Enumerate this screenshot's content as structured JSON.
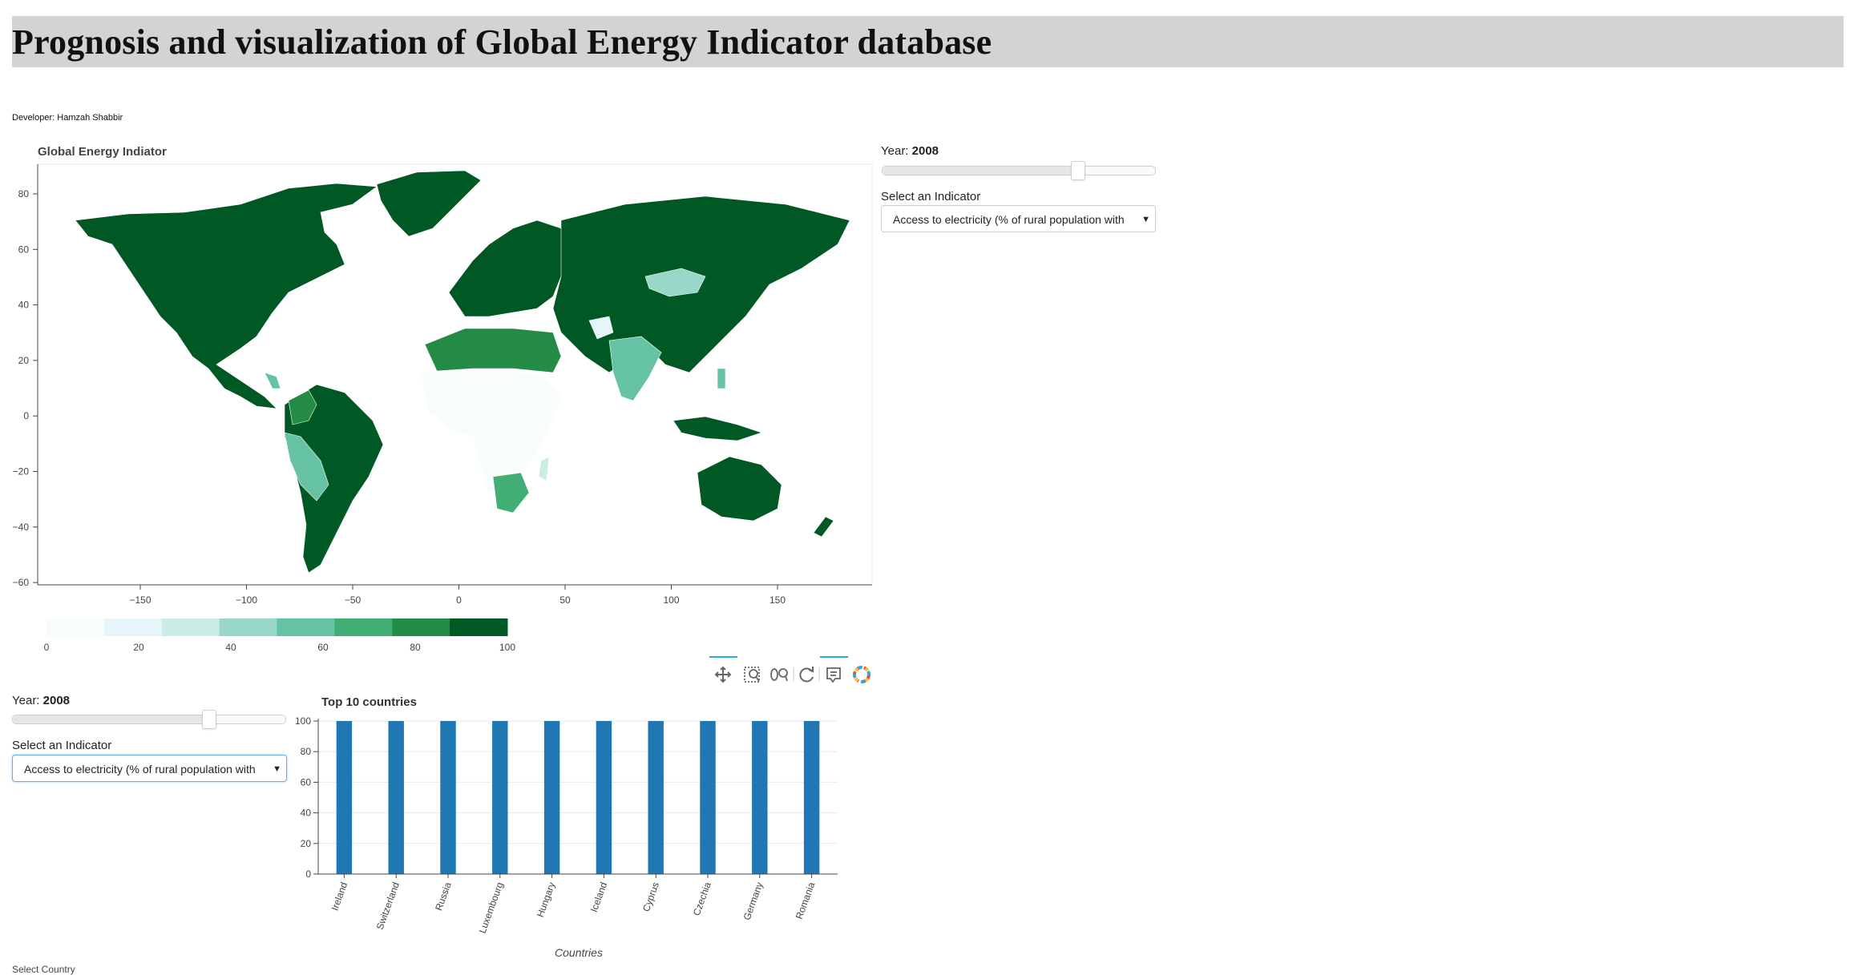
{
  "header": {
    "title": "Prognosis and visualization of  Global Energy Indicator database"
  },
  "developer": "Developer: Hamzah Shabbir",
  "map": {
    "title": "Global Energy Indiator",
    "x_ticks": [
      "−150",
      "−100",
      "−50",
      "0",
      "50",
      "100",
      "150"
    ],
    "y_ticks": [
      "80",
      "60",
      "40",
      "20",
      "0",
      "−20",
      "−40",
      "−60"
    ],
    "colorbar_ticks": [
      "0",
      "20",
      "40",
      "60",
      "80",
      "100"
    ],
    "palette": [
      "#f7fcfd",
      "#e5f5f9",
      "#ccece6",
      "#99d8c9",
      "#66c2a4",
      "#41ae76",
      "#238b45",
      "#005824"
    ]
  },
  "top_widgets": {
    "year_label": "Year: ",
    "year_value": "2008",
    "indicator_label": "Select an Indicator",
    "indicator_value": "Access to electricity (% of rural population with"
  },
  "bottom_widgets": {
    "year_label": "Year: ",
    "year_value": "2008",
    "indicator_label": "Select an Indicator",
    "indicator_value": "Access to electricity (% of rural population with"
  },
  "toolbar": [
    "pan-icon",
    "box-zoom-icon",
    "wheel-zoom-icon",
    "reset-icon",
    "hover-icon",
    "bokeh-logo-icon"
  ],
  "chart_data": {
    "type": "bar",
    "title": "Top 10 countries",
    "xlabel": "Countries",
    "ylabel": "",
    "categories": [
      "Ireland",
      "Switzerland",
      "Russia",
      "Luxembourg",
      "Hungary",
      "Iceland",
      "Cyprus",
      "Czechia",
      "Germany",
      "Romania"
    ],
    "values": [
      100,
      100,
      100,
      100,
      100,
      100,
      100,
      100,
      100,
      100
    ],
    "ylim": [
      0,
      100
    ],
    "y_ticks": [
      "0",
      "20",
      "40",
      "60",
      "80",
      "100"
    ],
    "bar_color": "#1f77b4",
    "grid": true
  },
  "cutoff_text": "Select Country"
}
